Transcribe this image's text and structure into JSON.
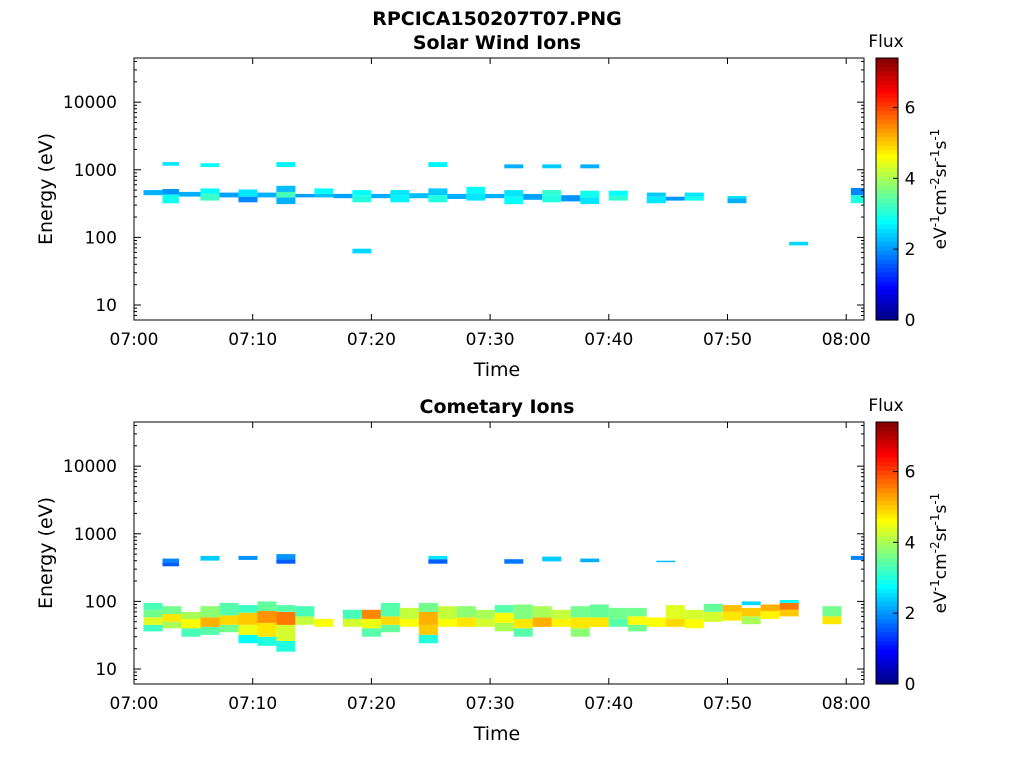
{
  "figure": {
    "title": "RPCICA150207T07.PNG"
  },
  "colorbar": {
    "label": "Flux",
    "unit_parts": [
      "eV",
      "-1",
      "cm",
      "-2",
      "sr",
      "-1",
      "s",
      "-1"
    ],
    "ticks": [
      "0",
      "2",
      "4",
      "6"
    ],
    "range": [
      0,
      7.4
    ],
    "colormap": "jet"
  },
  "chart_data": [
    {
      "type": "heatmap",
      "title": "Solar Wind Ions",
      "xlabel": "Time",
      "ylabel": "Energy (eV)",
      "x_ticks": [
        "07:00",
        "07:10",
        "07:20",
        "07:30",
        "07:40",
        "07:50",
        "08:00"
      ],
      "y_ticks": [
        "10",
        "100",
        "1000",
        "10000"
      ],
      "yscale": "log",
      "ylim": [
        6,
        45000
      ],
      "xlim_minutes": [
        0,
        61.5
      ],
      "cells": [
        [
          0.8,
          2.4,
          420,
          500,
          2.2
        ],
        [
          2.4,
          3.8,
          430,
          520,
          2.0
        ],
        [
          2.4,
          3.8,
          320,
          430,
          2.9
        ],
        [
          2.4,
          3.8,
          1150,
          1300,
          2.6
        ],
        [
          3.8,
          5.6,
          400,
          470,
          2.2
        ],
        [
          5.6,
          7.2,
          350,
          440,
          3.2
        ],
        [
          5.6,
          7.2,
          440,
          530,
          2.8
        ],
        [
          5.6,
          7.2,
          1100,
          1250,
          2.8
        ],
        [
          7.2,
          8.8,
          390,
          460,
          2.1
        ],
        [
          8.8,
          10.4,
          330,
          400,
          1.9
        ],
        [
          8.8,
          10.4,
          400,
          510,
          2.6
        ],
        [
          10.4,
          12.0,
          390,
          460,
          2.2
        ],
        [
          12.0,
          13.6,
          310,
          390,
          2.2
        ],
        [
          12.0,
          13.6,
          390,
          470,
          3.3
        ],
        [
          12.0,
          13.6,
          470,
          580,
          2.3
        ],
        [
          12.0,
          13.6,
          1100,
          1300,
          2.7
        ],
        [
          13.6,
          15.2,
          390,
          440,
          2.1
        ],
        [
          15.2,
          16.8,
          390,
          440,
          2.3
        ],
        [
          15.2,
          16.8,
          440,
          530,
          2.8
        ],
        [
          16.8,
          18.4,
          380,
          440,
          2.1
        ],
        [
          18.4,
          20.0,
          330,
          420,
          3.0
        ],
        [
          18.4,
          20.0,
          420,
          500,
          2.8
        ],
        [
          18.4,
          20.0,
          58,
          68,
          2.5
        ],
        [
          20.0,
          21.6,
          380,
          440,
          2.2
        ],
        [
          21.6,
          23.2,
          330,
          420,
          2.7
        ],
        [
          21.6,
          23.2,
          420,
          500,
          2.6
        ],
        [
          23.2,
          24.8,
          380,
          450,
          2.3
        ],
        [
          24.8,
          26.4,
          330,
          420,
          3.0
        ],
        [
          24.8,
          26.4,
          420,
          530,
          2.4
        ],
        [
          24.8,
          26.4,
          1100,
          1300,
          2.7
        ],
        [
          26.4,
          28.0,
          370,
          440,
          2.2
        ],
        [
          28.0,
          29.6,
          350,
          450,
          2.6
        ],
        [
          28.0,
          29.6,
          450,
          560,
          2.8
        ],
        [
          29.6,
          31.2,
          380,
          440,
          2.2
        ],
        [
          31.2,
          32.8,
          310,
          400,
          2.8
        ],
        [
          31.2,
          32.8,
          400,
          500,
          2.6
        ],
        [
          31.2,
          32.8,
          1050,
          1200,
          2.2
        ],
        [
          32.8,
          34.4,
          360,
          440,
          2.1
        ],
        [
          34.4,
          36.0,
          330,
          420,
          3.0
        ],
        [
          34.4,
          36.0,
          420,
          500,
          3.1
        ],
        [
          34.4,
          36.0,
          1050,
          1200,
          2.4
        ],
        [
          36.0,
          37.6,
          340,
          420,
          2.0
        ],
        [
          37.6,
          39.2,
          310,
          390,
          2.6
        ],
        [
          37.6,
          39.2,
          390,
          490,
          2.9
        ],
        [
          37.6,
          39.2,
          1050,
          1200,
          2.2
        ],
        [
          40.0,
          41.6,
          350,
          410,
          3.1
        ],
        [
          40.0,
          41.6,
          410,
          490,
          2.8
        ],
        [
          43.2,
          44.8,
          320,
          400,
          2.6
        ],
        [
          43.2,
          44.8,
          400,
          460,
          2.4
        ],
        [
          44.8,
          46.4,
          350,
          400,
          2.0
        ],
        [
          46.4,
          48.0,
          350,
          400,
          2.9
        ],
        [
          46.4,
          48.0,
          400,
          460,
          2.6
        ],
        [
          50.0,
          51.6,
          320,
          380,
          2.2
        ],
        [
          50.0,
          51.6,
          380,
          410,
          2.6
        ],
        [
          55.2,
          56.8,
          76,
          86,
          2.5
        ],
        [
          60.4,
          61.5,
          420,
          540,
          1.9
        ],
        [
          60.4,
          61.5,
          320,
          420,
          3.0
        ]
      ]
    },
    {
      "type": "heatmap",
      "title": "Cometary Ions",
      "xlabel": "Time",
      "ylabel": "Energy (eV)",
      "x_ticks": [
        "07:00",
        "07:10",
        "07:20",
        "07:30",
        "07:40",
        "07:50",
        "08:00"
      ],
      "y_ticks": [
        "10",
        "100",
        "1000",
        "10000"
      ],
      "yscale": "log",
      "ylim": [
        6,
        45000
      ],
      "xlim_minutes": [
        0,
        61.5
      ],
      "cells": [
        [
          2.4,
          3.8,
          380,
          430,
          1.9
        ],
        [
          2.4,
          3.8,
          330,
          380,
          1.6
        ],
        [
          5.6,
          7.2,
          400,
          470,
          2.4
        ],
        [
          8.8,
          10.4,
          410,
          470,
          2.0
        ],
        [
          12.0,
          13.6,
          360,
          420,
          1.6
        ],
        [
          12.0,
          13.6,
          420,
          500,
          2.0
        ],
        [
          24.8,
          26.4,
          360,
          420,
          1.6
        ],
        [
          24.8,
          26.4,
          420,
          470,
          2.6
        ],
        [
          31.2,
          32.8,
          360,
          420,
          1.8
        ],
        [
          34.4,
          36.0,
          390,
          460,
          2.4
        ],
        [
          37.6,
          39.2,
          380,
          430,
          2.2
        ],
        [
          44.0,
          45.6,
          380,
          400,
          2.3
        ],
        [
          60.4,
          61.5,
          410,
          470,
          1.9
        ],
        [
          0.8,
          2.4,
          36,
          45,
          3.2
        ],
        [
          0.8,
          2.4,
          45,
          58,
          4.4
        ],
        [
          0.8,
          2.4,
          58,
          75,
          3.6
        ],
        [
          0.8,
          2.4,
          75,
          95,
          3.3
        ],
        [
          2.4,
          4.0,
          40,
          50,
          4.0
        ],
        [
          2.4,
          4.0,
          50,
          65,
          4.8
        ],
        [
          2.4,
          4.0,
          65,
          85,
          3.6
        ],
        [
          4.0,
          5.6,
          30,
          40,
          3.3
        ],
        [
          4.0,
          5.6,
          40,
          55,
          4.6
        ],
        [
          4.0,
          5.6,
          55,
          70,
          4.0
        ],
        [
          5.6,
          7.2,
          32,
          42,
          3.4
        ],
        [
          5.6,
          7.2,
          42,
          58,
          5.2
        ],
        [
          5.6,
          7.2,
          58,
          85,
          3.8
        ],
        [
          7.2,
          8.8,
          35,
          45,
          3.6
        ],
        [
          7.2,
          8.8,
          45,
          62,
          4.9
        ],
        [
          7.2,
          8.8,
          62,
          95,
          3.4
        ],
        [
          8.8,
          10.4,
          24,
          32,
          2.8
        ],
        [
          8.8,
          10.4,
          32,
          45,
          4.5
        ],
        [
          8.8,
          10.4,
          45,
          68,
          5.0
        ],
        [
          8.8,
          10.4,
          68,
          88,
          3.2
        ],
        [
          10.4,
          12.0,
          22,
          30,
          3.0
        ],
        [
          10.4,
          12.0,
          30,
          48,
          4.8
        ],
        [
          10.4,
          12.0,
          48,
          72,
          5.4
        ],
        [
          10.4,
          12.0,
          72,
          100,
          3.5
        ],
        [
          12.0,
          13.6,
          18,
          26,
          3.0
        ],
        [
          12.0,
          13.6,
          26,
          45,
          4.3
        ],
        [
          12.0,
          13.6,
          45,
          70,
          5.6
        ],
        [
          12.0,
          13.6,
          70,
          88,
          3.4
        ],
        [
          13.6,
          15.2,
          45,
          60,
          4.2
        ],
        [
          13.6,
          15.2,
          60,
          85,
          3.3
        ],
        [
          15.2,
          16.8,
          42,
          55,
          4.6
        ],
        [
          17.6,
          19.2,
          55,
          75,
          3.3
        ],
        [
          17.6,
          19.2,
          42,
          55,
          4.3
        ],
        [
          19.2,
          20.8,
          30,
          40,
          3.4
        ],
        [
          19.2,
          20.8,
          40,
          55,
          4.5
        ],
        [
          19.2,
          20.8,
          55,
          75,
          5.5
        ],
        [
          20.8,
          22.4,
          35,
          45,
          3.5
        ],
        [
          20.8,
          22.4,
          45,
          60,
          4.9
        ],
        [
          20.8,
          22.4,
          60,
          95,
          3.4
        ],
        [
          22.4,
          24.0,
          42,
          55,
          4.6
        ],
        [
          22.4,
          24.0,
          55,
          80,
          4.2
        ],
        [
          24.0,
          25.6,
          24,
          32,
          3.0
        ],
        [
          24.0,
          25.6,
          32,
          45,
          5.0
        ],
        [
          24.0,
          25.6,
          45,
          70,
          5.2
        ],
        [
          24.0,
          25.6,
          70,
          95,
          3.6
        ],
        [
          25.6,
          27.2,
          42,
          55,
          4.6
        ],
        [
          25.6,
          27.2,
          55,
          85,
          4.2
        ],
        [
          27.2,
          28.8,
          42,
          58,
          4.8
        ],
        [
          27.2,
          28.8,
          58,
          85,
          3.8
        ],
        [
          28.8,
          30.4,
          42,
          55,
          4.3
        ],
        [
          28.8,
          30.4,
          55,
          75,
          4.0
        ],
        [
          30.4,
          32.0,
          36,
          48,
          4.0
        ],
        [
          30.4,
          32.0,
          48,
          68,
          4.6
        ],
        [
          30.4,
          32.0,
          68,
          88,
          3.4
        ],
        [
          32.0,
          33.6,
          30,
          40,
          3.4
        ],
        [
          32.0,
          33.6,
          40,
          55,
          4.8
        ],
        [
          32.0,
          33.6,
          55,
          90,
          3.7
        ],
        [
          33.6,
          35.2,
          42,
          58,
          5.2
        ],
        [
          33.6,
          35.2,
          58,
          85,
          4.0
        ],
        [
          35.2,
          36.8,
          42,
          55,
          4.7
        ],
        [
          35.2,
          36.8,
          55,
          75,
          4.2
        ],
        [
          36.8,
          38.4,
          30,
          40,
          3.8
        ],
        [
          36.8,
          38.4,
          40,
          58,
          4.8
        ],
        [
          36.8,
          38.4,
          58,
          85,
          3.6
        ],
        [
          38.4,
          40.0,
          42,
          58,
          4.8
        ],
        [
          38.4,
          40.0,
          58,
          90,
          3.5
        ],
        [
          40.0,
          41.6,
          42,
          55,
          3.4
        ],
        [
          40.0,
          41.6,
          55,
          80,
          3.6
        ],
        [
          41.6,
          43.2,
          36,
          45,
          3.6
        ],
        [
          41.6,
          43.2,
          45,
          60,
          4.6
        ],
        [
          41.6,
          43.2,
          60,
          80,
          3.6
        ],
        [
          43.2,
          44.8,
          42,
          58,
          4.6
        ],
        [
          44.8,
          46.4,
          42,
          55,
          4.9
        ],
        [
          44.8,
          46.4,
          55,
          88,
          4.4
        ],
        [
          46.4,
          48.0,
          40,
          55,
          4.6
        ],
        [
          46.4,
          48.0,
          55,
          75,
          4.3
        ],
        [
          48.0,
          49.6,
          50,
          70,
          4.3
        ],
        [
          48.0,
          49.6,
          70,
          92,
          3.5
        ],
        [
          49.6,
          51.2,
          52,
          70,
          4.8
        ],
        [
          49.6,
          51.2,
          70,
          88,
          5.1
        ],
        [
          51.2,
          52.8,
          46,
          60,
          4.0
        ],
        [
          51.2,
          52.8,
          60,
          80,
          5.0
        ],
        [
          51.2,
          52.8,
          88,
          100,
          2.5
        ],
        [
          52.8,
          54.4,
          55,
          72,
          4.7
        ],
        [
          52.8,
          54.4,
          72,
          90,
          5.2
        ],
        [
          54.4,
          56.0,
          60,
          75,
          5.0
        ],
        [
          54.4,
          56.0,
          75,
          95,
          5.6
        ],
        [
          54.4,
          56.0,
          95,
          105,
          2.8
        ],
        [
          58.0,
          59.6,
          46,
          60,
          4.8
        ],
        [
          58.0,
          59.6,
          60,
          85,
          3.6
        ]
      ]
    }
  ]
}
